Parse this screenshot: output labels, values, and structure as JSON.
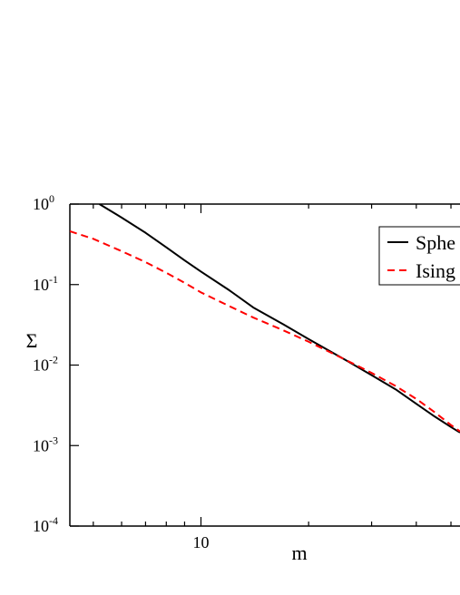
{
  "chart_data": {
    "type": "line",
    "title": "",
    "xlabel": "m",
    "ylabel": "Σ",
    "x_scale": "log",
    "y_scale": "log",
    "xlim": [
      4.3,
      53
    ],
    "ylim": [
      0.0001,
      1
    ],
    "grid": false,
    "legend_position": "top-right",
    "x_ticks": [
      {
        "value": 10,
        "label": "10"
      }
    ],
    "y_ticks": [
      {
        "value": 1,
        "base": "10",
        "exp": "0"
      },
      {
        "value": 0.1,
        "base": "10",
        "exp": "-1"
      },
      {
        "value": 0.01,
        "base": "10",
        "exp": "-2"
      },
      {
        "value": 0.001,
        "base": "10",
        "exp": "-3"
      },
      {
        "value": 0.0001,
        "base": "10",
        "exp": "-4"
      }
    ],
    "series": [
      {
        "name": "Spherical",
        "color": "#000000",
        "dash": "solid",
        "points": [
          [
            5.2,
            1.0
          ],
          [
            6.0,
            0.68
          ],
          [
            7.0,
            0.44
          ],
          [
            8.0,
            0.29
          ],
          [
            9.0,
            0.2
          ],
          [
            10.0,
            0.145
          ],
          [
            12.0,
            0.085
          ],
          [
            14.0,
            0.052
          ],
          [
            17.0,
            0.032
          ],
          [
            20.0,
            0.021
          ],
          [
            25.0,
            0.012
          ],
          [
            30.0,
            0.0075
          ],
          [
            35.0,
            0.005
          ],
          [
            40.0,
            0.0033
          ],
          [
            45.0,
            0.0023
          ],
          [
            50.0,
            0.0017
          ],
          [
            53.0,
            0.00145
          ]
        ]
      },
      {
        "name": "Ising",
        "color": "#ff0000",
        "dash": "dashed",
        "points": [
          [
            4.3,
            0.46
          ],
          [
            5.0,
            0.37
          ],
          [
            6.0,
            0.26
          ],
          [
            7.0,
            0.19
          ],
          [
            8.0,
            0.14
          ],
          [
            9.0,
            0.105
          ],
          [
            10.0,
            0.08
          ],
          [
            12.0,
            0.054
          ],
          [
            14.0,
            0.039
          ],
          [
            17.0,
            0.027
          ],
          [
            20.0,
            0.0195
          ],
          [
            25.0,
            0.012
          ],
          [
            30.0,
            0.008
          ],
          [
            35.0,
            0.0055
          ],
          [
            40.0,
            0.0038
          ],
          [
            45.0,
            0.0026
          ],
          [
            50.0,
            0.0018
          ],
          [
            53.0,
            0.0015
          ]
        ]
      }
    ],
    "legend": [
      {
        "label": "Sphe",
        "series": "Spherical"
      },
      {
        "label": "Ising",
        "series": "Ising"
      }
    ]
  }
}
